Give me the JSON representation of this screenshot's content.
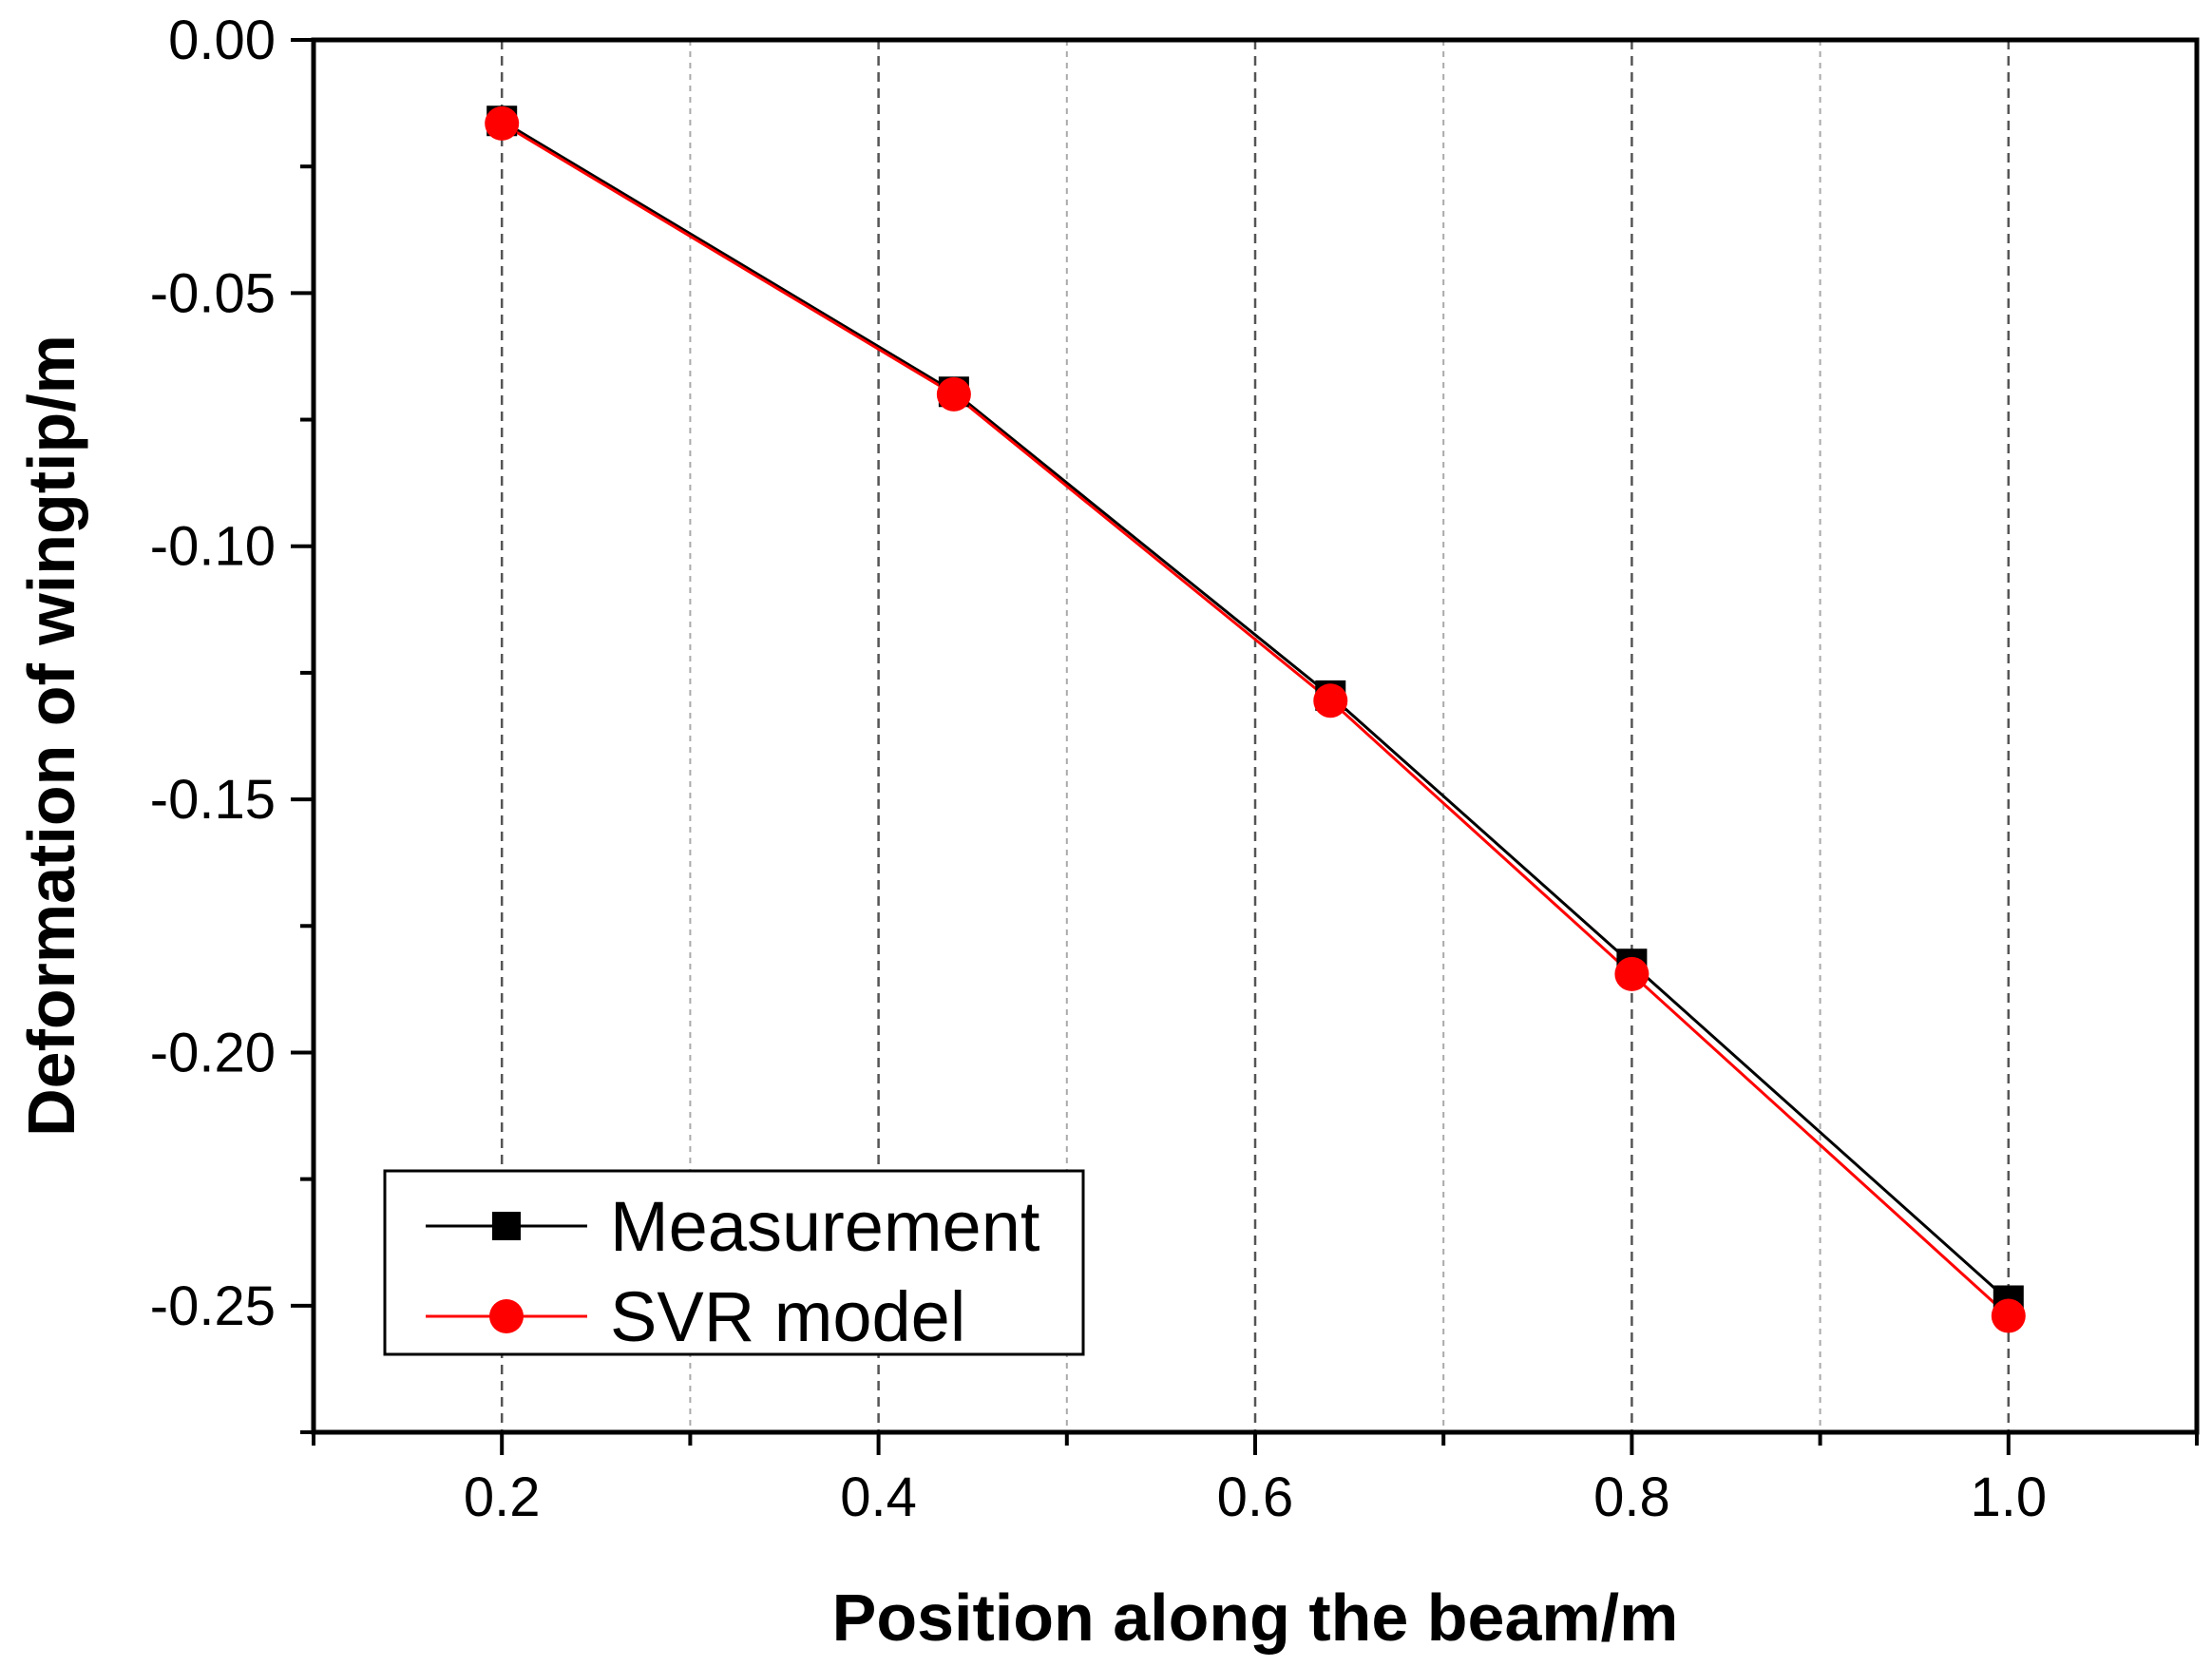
{
  "chart_data": {
    "type": "line",
    "title": "",
    "xlabel": "Position along the beam/m",
    "ylabel": "Deformation of wingtip/m",
    "xlim": [
      0.1,
      1.1
    ],
    "ylim": [
      -0.275,
      0.0
    ],
    "grid": true,
    "legend_position": "bottom-left",
    "x_ticks": [
      {
        "value": 0.2,
        "label": "0.2"
      },
      {
        "value": 0.4,
        "label": "0.4"
      },
      {
        "value": 0.6,
        "label": "0.6"
      },
      {
        "value": 0.8,
        "label": "0.8"
      },
      {
        "value": 1.0,
        "label": "1.0"
      }
    ],
    "y_ticks": [
      {
        "value": 0.0,
        "label": "0.00"
      },
      {
        "value": -0.05,
        "label": "-0.05"
      },
      {
        "value": -0.1,
        "label": "-0.10"
      },
      {
        "value": -0.15,
        "label": "-0.15"
      },
      {
        "value": -0.2,
        "label": "-0.20"
      },
      {
        "value": -0.25,
        "label": "-0.25"
      }
    ],
    "x": [
      0.2,
      0.44,
      0.64,
      0.8,
      1.0
    ],
    "series": [
      {
        "name": "Measurement",
        "color": "#000000",
        "marker": "square",
        "values": [
          -0.016,
          -0.0695,
          -0.1295,
          -0.1825,
          -0.249
        ]
      },
      {
        "name": "SVR model",
        "color": "#ff0000",
        "marker": "circle",
        "values": [
          -0.0165,
          -0.07,
          -0.1305,
          -0.1845,
          -0.252
        ]
      }
    ]
  }
}
